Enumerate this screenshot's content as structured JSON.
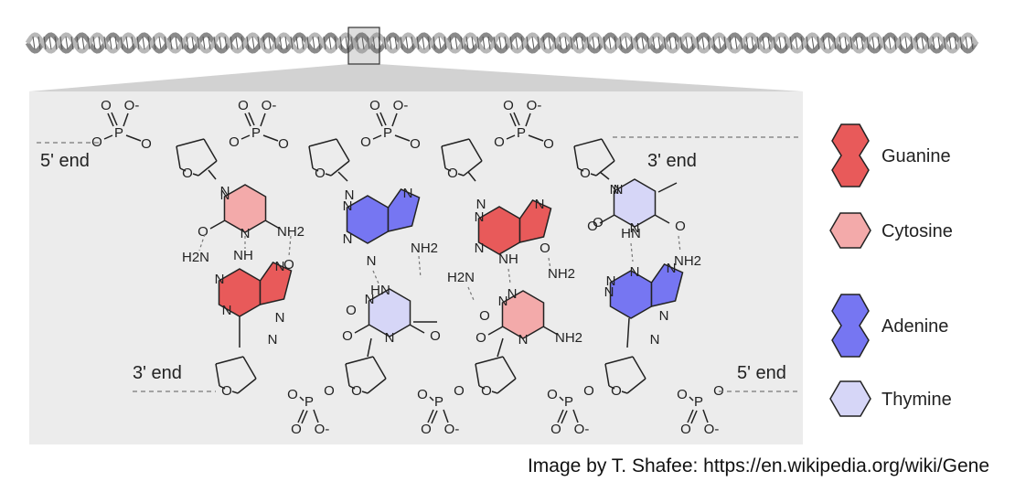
{
  "colors": {
    "guanine": "#e85a5a",
    "cytosine": "#f3aaaa",
    "adenine": "#7676f2",
    "thymine": "#d6d6f7",
    "panel": "#ececec",
    "funnel": "#d2d2d2"
  },
  "strand_labels": {
    "top_left": "5' end",
    "top_right": "3' end",
    "bottom_left": "3' end",
    "bottom_right": "5' end"
  },
  "atoms": {
    "o": "O",
    "p": "P",
    "n": "N",
    "nh": "NH",
    "hn": "HN",
    "nh2": "NH2",
    "h2n": "H2N",
    "o_minus": "O-"
  },
  "legend": [
    {
      "label": "Guanine",
      "type": "purine",
      "color_key": "guanine"
    },
    {
      "label": "Cytosine",
      "type": "pyrimidine",
      "color_key": "cytosine"
    },
    {
      "label": "Adenine",
      "type": "purine",
      "color_key": "adenine"
    },
    {
      "label": "Thymine",
      "type": "pyrimidine",
      "color_key": "thymine"
    }
  ],
  "credit": "Image by T. Shafee: https://en.wikipedia.org/wiki/Gene"
}
